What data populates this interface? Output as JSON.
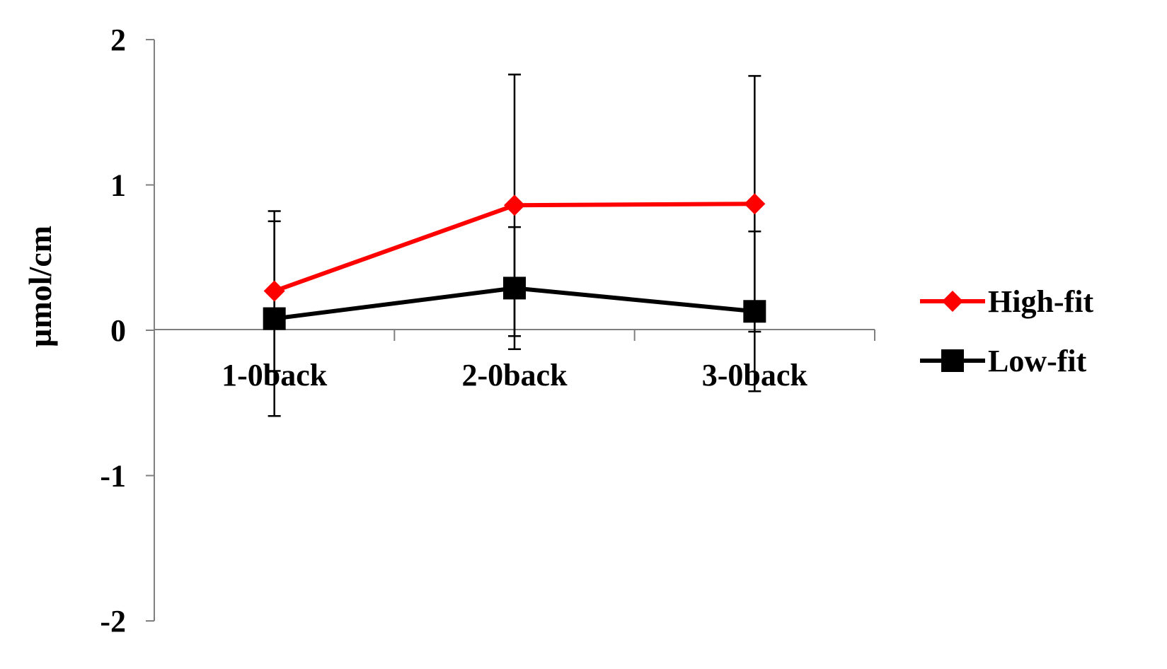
{
  "chart_data": {
    "type": "line",
    "title": "",
    "xlabel": "",
    "ylabel": "µmol/cm",
    "ylim": [
      -2,
      2
    ],
    "yticks": [
      2,
      1,
      0,
      -1,
      -2
    ],
    "ytick_labels": [
      "2",
      "1",
      "0",
      "-1",
      "-2"
    ],
    "categories": [
      "1-0back",
      "2-0back",
      "3-0back"
    ],
    "grid": false,
    "legend_position": "right",
    "series": [
      {
        "name": "High-fit",
        "color": "#ff0000",
        "marker": "diamond",
        "values": [
          0.27,
          0.86,
          0.87
        ],
        "error": [
          0.55,
          0.9,
          0.88
        ]
      },
      {
        "name": "Low-fit",
        "color": "#000000",
        "marker": "square",
        "values": [
          0.08,
          0.29,
          0.13
        ],
        "error": [
          0.67,
          0.42,
          0.55
        ]
      }
    ]
  }
}
